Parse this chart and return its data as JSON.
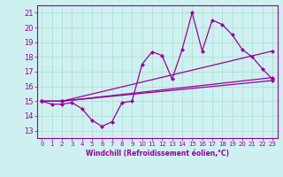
{
  "xlabel": "Windchill (Refroidissement éolien,°C)",
  "bg_color": "#cff0f0",
  "line_color": "#990099",
  "grid_color": "#aaddcc",
  "xlim": [
    -0.5,
    23.5
  ],
  "ylim": [
    12.5,
    21.5
  ],
  "xticks": [
    0,
    1,
    2,
    3,
    4,
    5,
    6,
    7,
    8,
    9,
    10,
    11,
    12,
    13,
    14,
    15,
    16,
    17,
    18,
    19,
    20,
    21,
    22,
    23
  ],
  "yticks": [
    13,
    14,
    15,
    16,
    17,
    18,
    19,
    20,
    21
  ],
  "series1_x": [
    0,
    1,
    2,
    3,
    4,
    5,
    6,
    7,
    8,
    9,
    10,
    11,
    12,
    13,
    14,
    15,
    16,
    17,
    18,
    19,
    20,
    21,
    22,
    23
  ],
  "series1_y": [
    15.0,
    14.8,
    14.8,
    14.9,
    14.5,
    13.7,
    13.3,
    13.6,
    14.9,
    15.0,
    17.5,
    18.35,
    18.1,
    16.5,
    18.5,
    21.0,
    18.4,
    20.5,
    20.2,
    19.5,
    18.5,
    18.0,
    17.2,
    16.5
  ],
  "series2_x": [
    0,
    2,
    23
  ],
  "series2_y": [
    15.0,
    15.0,
    18.4
  ],
  "series3_x": [
    0,
    2,
    23
  ],
  "series3_y": [
    15.0,
    15.0,
    16.6
  ],
  "series4_x": [
    0,
    2,
    23
  ],
  "series4_y": [
    15.0,
    15.0,
    16.4
  ]
}
